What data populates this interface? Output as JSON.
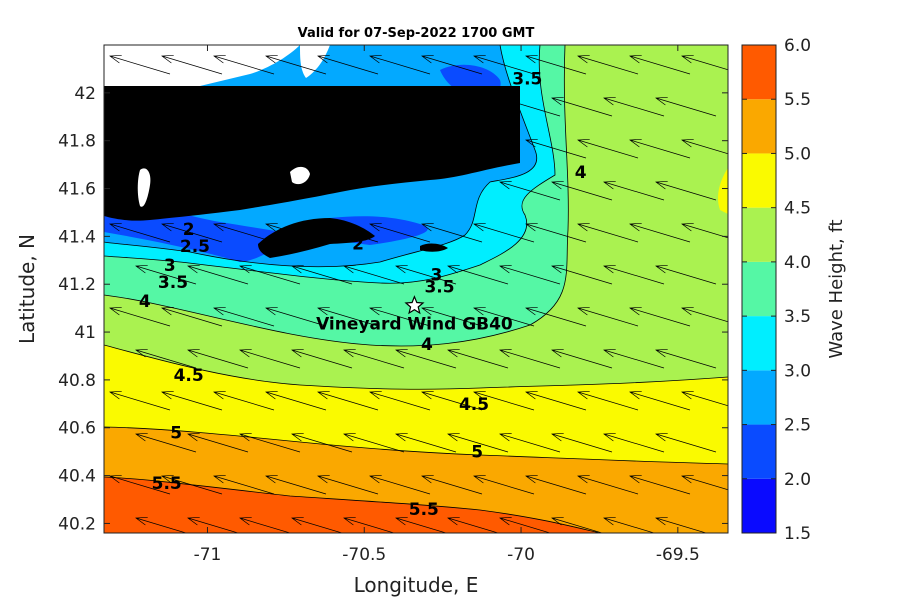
{
  "chart_data": {
    "type": "heatmap",
    "title": "Valid for 07-Sep-2022 1700 GMT",
    "xlabel": "Longitude, E",
    "ylabel": "Latitude, N",
    "xlim": [
      -71.33,
      -69.34
    ],
    "ylim": [
      40.16,
      42.2
    ],
    "xticks": [
      -71,
      -70.5,
      -70,
      -69.5
    ],
    "yticks": [
      40.2,
      40.4,
      40.6,
      40.8,
      41,
      41.2,
      41.4,
      41.6,
      41.8,
      42
    ],
    "colorbar": {
      "label": "Wave Height, ft",
      "ticks": [
        1.5,
        2.0,
        2.5,
        3.0,
        3.5,
        4.0,
        4.5,
        5.0,
        5.5,
        6.0
      ],
      "bins": [
        {
          "from": 1.5,
          "to": 2.0,
          "color": "#0a0aff"
        },
        {
          "from": 2.0,
          "to": 2.5,
          "color": "#0a4bff"
        },
        {
          "from": 2.5,
          "to": 3.0,
          "color": "#03a9ff"
        },
        {
          "from": 3.0,
          "to": 3.5,
          "color": "#00eeff"
        },
        {
          "from": 3.5,
          "to": 4.0,
          "color": "#55f7a5"
        },
        {
          "from": 4.0,
          "to": 4.5,
          "color": "#aaf250"
        },
        {
          "from": 4.5,
          "to": 5.0,
          "color": "#fafa00"
        },
        {
          "from": 5.0,
          "to": 5.5,
          "color": "#faa800"
        },
        {
          "from": 5.5,
          "to": 6.0,
          "color": "#ff5a00"
        }
      ]
    },
    "contour_labels": [
      {
        "text": "2",
        "lon": -71.06,
        "lat": 41.43
      },
      {
        "text": "2.5",
        "lon": -71.04,
        "lat": 41.36
      },
      {
        "text": "3",
        "lon": -71.12,
        "lat": 41.28
      },
      {
        "text": "3.5",
        "lon": -71.11,
        "lat": 41.21
      },
      {
        "text": "4",
        "lon": -71.2,
        "lat": 41.13
      },
      {
        "text": "4.5",
        "lon": -71.06,
        "lat": 40.82
      },
      {
        "text": "5",
        "lon": -71.1,
        "lat": 40.58
      },
      {
        "text": "5.5",
        "lon": -71.13,
        "lat": 40.37
      },
      {
        "text": "2",
        "lon": -70.52,
        "lat": 41.37
      },
      {
        "text": "3",
        "lon": -70.27,
        "lat": 41.24
      },
      {
        "text": "3.5",
        "lon": -70.26,
        "lat": 41.19
      },
      {
        "text": "4",
        "lon": -70.3,
        "lat": 40.95
      },
      {
        "text": "4.5",
        "lon": -70.15,
        "lat": 40.7
      },
      {
        "text": "5",
        "lon": -70.14,
        "lat": 40.5
      },
      {
        "text": "5.5",
        "lon": -70.31,
        "lat": 40.26
      },
      {
        "text": "3.5",
        "lon": -69.98,
        "lat": 42.06
      },
      {
        "text": "4",
        "lon": -69.81,
        "lat": 41.67
      }
    ],
    "site": {
      "name": "Vineyard Wind GB40",
      "lon": -70.34,
      "lat": 41.11
    },
    "arrows": {
      "direction": "from east-southeast toward west-northwest",
      "count": 127
    }
  }
}
